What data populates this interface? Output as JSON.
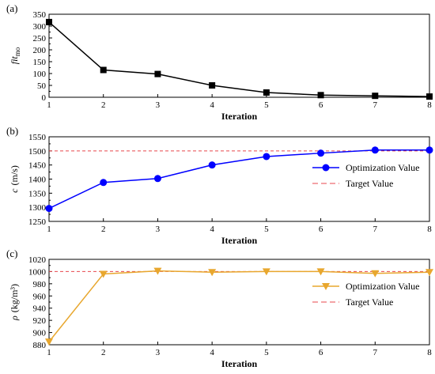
{
  "chart_data": [
    {
      "type": "line",
      "panel_label": "(a)",
      "xlabel": "Iteration",
      "ylabel_main": "fit",
      "ylabel_sub": "mo",
      "x": [
        1,
        2,
        3,
        4,
        5,
        6,
        7,
        8
      ],
      "xlim": [
        1,
        8
      ],
      "ylim": [
        0,
        350
      ],
      "yticks": [
        0,
        50,
        100,
        150,
        200,
        250,
        300,
        350
      ],
      "series": [
        {
          "values": [
            317,
            115,
            98,
            50,
            20,
            9,
            6,
            3
          ],
          "color": "#000000",
          "marker": "square"
        }
      ],
      "grid": false
    },
    {
      "type": "line",
      "panel_label": "(b)",
      "xlabel": "Iteration",
      "ylabel_main": "c",
      "ylabel_sub": "(m/s)",
      "x": [
        1,
        2,
        3,
        4,
        5,
        6,
        7,
        8
      ],
      "xlim": [
        1,
        8
      ],
      "ylim": [
        1250,
        1550
      ],
      "yticks": [
        1250,
        1300,
        1350,
        1400,
        1450,
        1500,
        1550
      ],
      "series": [
        {
          "name": "Optimization Value",
          "values": [
            1296,
            1388,
            1402,
            1450,
            1480,
            1492,
            1503,
            1503
          ],
          "color": "#0000ff",
          "marker": "circle"
        }
      ],
      "target": {
        "name": "Target Value",
        "value": 1500,
        "color": "#e8474c"
      },
      "legend": "right",
      "grid": false
    },
    {
      "type": "line",
      "panel_label": "(c)",
      "xlabel": "Iteration",
      "ylabel_main": "ρ",
      "ylabel_sub": "(kg/m³)",
      "x": [
        1,
        2,
        3,
        4,
        5,
        6,
        7,
        8
      ],
      "xlim": [
        1,
        8
      ],
      "ylim": [
        880,
        1020
      ],
      "yticks": [
        880,
        900,
        920,
        940,
        960,
        980,
        1000,
        1020
      ],
      "series": [
        {
          "name": "Optimization Value",
          "values": [
            885,
            996,
            1001,
            999,
            1000,
            1000,
            997,
            999
          ],
          "color": "#e8a72e",
          "marker": "triangle-down"
        }
      ],
      "target": {
        "name": "Target Value",
        "value": 1000,
        "color": "#e8474c"
      },
      "legend": "right",
      "grid": false
    }
  ]
}
